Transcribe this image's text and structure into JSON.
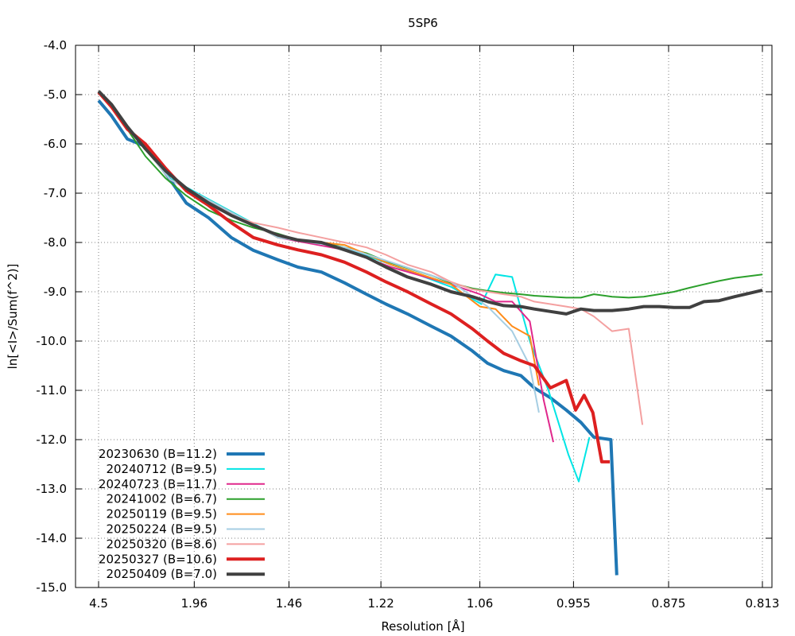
{
  "chart_data": {
    "type": "line",
    "title": "5SP6",
    "xlabel": "Resolution [Å]",
    "ylabel": "ln[<I>/Sum(f^2)]",
    "x_scale": "inverse-square (1/d^2)",
    "x_ticks": [
      "4.5",
      "1.96",
      "1.46",
      "1.22",
      "1.06",
      "0.955",
      "0.875",
      "0.813"
    ],
    "ylim": [
      -15,
      -4
    ],
    "y_ticks": [
      "-4.0",
      "-5.0",
      "-6.0",
      "-7.0",
      "-8.0",
      "-9.0",
      "-10.0",
      "-11.0",
      "-12.0",
      "-13.0",
      "-14.0",
      "-15.0"
    ],
    "grid": true,
    "legend_position": "bottom-left",
    "series": [
      {
        "name": "20230630 (B=11.2)",
        "color": "#1f77b4",
        "width": 4,
        "x": [
          4.5,
          3.58,
          2.98,
          2.56,
          2.25,
          2.03,
          1.85,
          1.71,
          1.6,
          1.5,
          1.43,
          1.36,
          1.3,
          1.25,
          1.21,
          1.17,
          1.13,
          1.1,
          1.07,
          1.05,
          1.03,
          1.01,
          0.995,
          0.978,
          0.962,
          0.948,
          0.936,
          0.921,
          0.916
        ],
        "y": [
          -5.12,
          -5.43,
          -5.9,
          -6.05,
          -6.6,
          -7.2,
          -7.5,
          -7.9,
          -8.16,
          -8.35,
          -8.5,
          -8.6,
          -8.82,
          -9.05,
          -9.25,
          -9.45,
          -9.7,
          -9.9,
          -10.2,
          -10.45,
          -10.6,
          -10.7,
          -10.95,
          -11.15,
          -11.4,
          -11.65,
          -11.95,
          -12.0,
          -14.75
        ]
      },
      {
        "name": "20240712 (B=9.5)",
        "color": "#00e5e5",
        "width": 2,
        "x": [
          4.5,
          2.2,
          1.5,
          1.3,
          1.2,
          1.1,
          1.058,
          1.04,
          1.02,
          1.0,
          0.98,
          0.96,
          0.95,
          0.94
        ],
        "y": [
          -4.93,
          -6.7,
          -7.88,
          -8.1,
          -8.45,
          -8.9,
          -9.25,
          -8.65,
          -8.7,
          -10.0,
          -11.0,
          -12.3,
          -12.85,
          -11.95
        ]
      },
      {
        "name": "20240723 (B=11.7)",
        "color": "#e0288c",
        "width": 2,
        "x": [
          4.5,
          2.2,
          1.5,
          1.3,
          1.2,
          1.1,
          1.06,
          1.04,
          1.02,
          1.0,
          0.985,
          0.975
        ],
        "y": [
          -4.93,
          -6.72,
          -7.9,
          -8.15,
          -8.5,
          -8.85,
          -9.05,
          -9.2,
          -9.2,
          -9.6,
          -11.2,
          -12.05
        ]
      },
      {
        "name": "20241002 (B=6.7)",
        "color": "#2ca02c",
        "width": 2,
        "x": [
          4.5,
          3.58,
          2.98,
          2.56,
          2.25,
          2.03,
          1.85,
          1.71,
          1.6,
          1.5,
          1.43,
          1.36,
          1.3,
          1.25,
          1.21,
          1.17,
          1.13,
          1.1,
          1.07,
          1.05,
          1.03,
          1.01,
          0.995,
          0.978,
          0.962,
          0.948,
          0.936,
          0.92,
          0.906,
          0.894,
          0.882,
          0.871,
          0.86,
          0.85,
          0.84,
          0.83,
          0.813
        ],
        "y": [
          -4.93,
          -5.2,
          -5.7,
          -6.25,
          -6.7,
          -7.05,
          -7.35,
          -7.55,
          -7.7,
          -7.82,
          -7.95,
          -8.0,
          -8.1,
          -8.22,
          -8.38,
          -8.52,
          -8.67,
          -8.82,
          -8.93,
          -8.98,
          -9.02,
          -9.05,
          -9.08,
          -9.1,
          -9.12,
          -9.12,
          -9.05,
          -9.1,
          -9.12,
          -9.1,
          -9.05,
          -9.0,
          -8.92,
          -8.85,
          -8.78,
          -8.72,
          -8.65
        ]
      },
      {
        "name": "20250119 (B=9.5)",
        "color": "#ff8c1a",
        "width": 2,
        "x": [
          4.5,
          2.2,
          1.5,
          1.3,
          1.2,
          1.1,
          1.06,
          1.04,
          1.02,
          1.0,
          0.99
        ],
        "y": [
          -4.93,
          -6.72,
          -7.9,
          -8.05,
          -8.45,
          -8.85,
          -9.3,
          -9.35,
          -9.7,
          -9.9,
          -10.9
        ]
      },
      {
        "name": "20250224 (B=9.5)",
        "color": "#a6cee3",
        "width": 2,
        "x": [
          4.5,
          2.2,
          1.5,
          1.3,
          1.2,
          1.1,
          1.05,
          1.02,
          1.0,
          0.99
        ],
        "y": [
          -4.93,
          -6.72,
          -7.9,
          -8.1,
          -8.4,
          -8.8,
          -9.3,
          -9.8,
          -10.5,
          -11.45
        ]
      },
      {
        "name": "20250320 (B=8.6)",
        "color": "#f4a0a0",
        "width": 2,
        "x": [
          4.5,
          3.58,
          2.98,
          2.56,
          2.25,
          2.03,
          1.85,
          1.71,
          1.6,
          1.5,
          1.43,
          1.36,
          1.3,
          1.25,
          1.21,
          1.17,
          1.13,
          1.1,
          1.07,
          1.05,
          1.03,
          1.01,
          0.995,
          0.978,
          0.962,
          0.948,
          0.936,
          0.92,
          0.906,
          0.895
        ],
        "y": [
          -4.93,
          -5.2,
          -5.65,
          -6.1,
          -6.55,
          -6.95,
          -7.25,
          -7.45,
          -7.6,
          -7.7,
          -7.8,
          -7.9,
          -8.0,
          -8.1,
          -8.25,
          -8.45,
          -8.6,
          -8.8,
          -8.95,
          -9.0,
          -9.05,
          -9.1,
          -9.2,
          -9.25,
          -9.3,
          -9.35,
          -9.5,
          -9.8,
          -9.75,
          -11.7
        ]
      },
      {
        "name": "20250327 (B=10.6)",
        "color": "#dd2020",
        "width": 4,
        "x": [
          4.5,
          3.58,
          2.98,
          2.56,
          2.25,
          2.03,
          1.85,
          1.71,
          1.6,
          1.5,
          1.43,
          1.36,
          1.3,
          1.25,
          1.21,
          1.17,
          1.13,
          1.1,
          1.07,
          1.05,
          1.03,
          1.01,
          0.995,
          0.978,
          0.962,
          0.953,
          0.945,
          0.937,
          0.929,
          0.922
        ],
        "y": [
          -4.95,
          -5.25,
          -5.7,
          -6.0,
          -6.5,
          -6.95,
          -7.25,
          -7.6,
          -7.9,
          -8.05,
          -8.15,
          -8.25,
          -8.4,
          -8.6,
          -8.8,
          -9.0,
          -9.25,
          -9.45,
          -9.75,
          -10.0,
          -10.25,
          -10.4,
          -10.5,
          -10.95,
          -10.8,
          -11.4,
          -11.1,
          -11.45,
          -12.45,
          -12.45
        ]
      },
      {
        "name": "20250409 (B=7.0)",
        "color": "#404040",
        "width": 4,
        "x": [
          4.5,
          3.58,
          2.98,
          2.56,
          2.25,
          2.03,
          1.85,
          1.71,
          1.6,
          1.5,
          1.43,
          1.36,
          1.3,
          1.25,
          1.21,
          1.17,
          1.13,
          1.1,
          1.07,
          1.05,
          1.03,
          1.01,
          0.995,
          0.978,
          0.962,
          0.948,
          0.936,
          0.92,
          0.906,
          0.894,
          0.882,
          0.871,
          0.86,
          0.85,
          0.84,
          0.83,
          0.813
        ],
        "y": [
          -4.93,
          -5.2,
          -5.65,
          -6.1,
          -6.55,
          -6.9,
          -7.2,
          -7.45,
          -7.65,
          -7.85,
          -7.95,
          -8.0,
          -8.15,
          -8.3,
          -8.5,
          -8.7,
          -8.85,
          -9.0,
          -9.1,
          -9.2,
          -9.28,
          -9.3,
          -9.35,
          -9.4,
          -9.45,
          -9.35,
          -9.38,
          -9.38,
          -9.35,
          -9.3,
          -9.3,
          -9.32,
          -9.32,
          -9.2,
          -9.18,
          -9.1,
          -8.97
        ]
      }
    ]
  }
}
